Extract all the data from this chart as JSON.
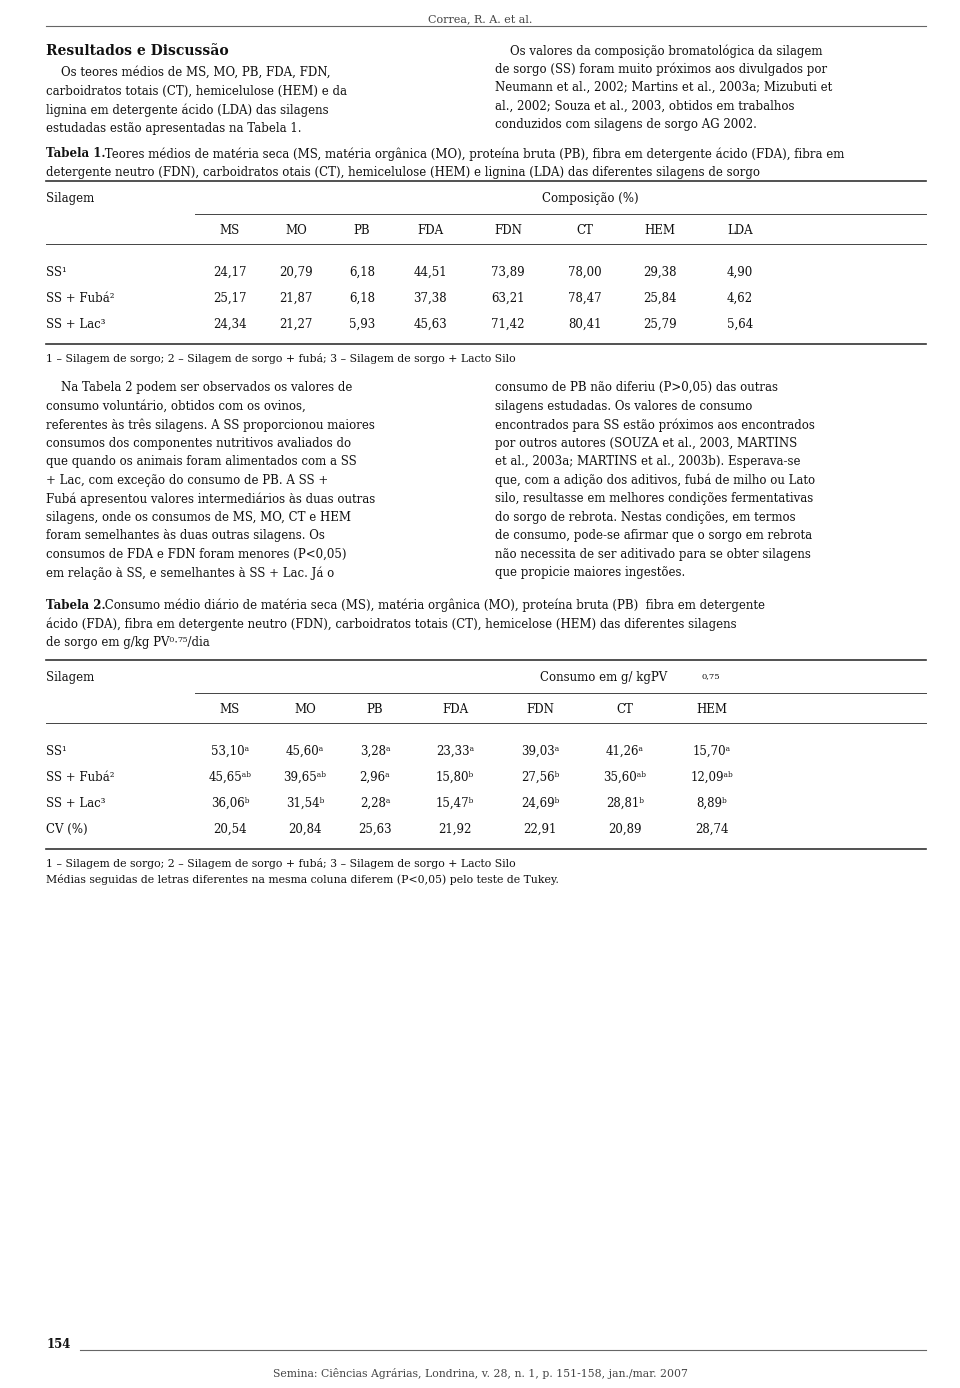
{
  "page_header": "Correa, R. A. et al.",
  "section_title": "Resultados e Discussão",
  "table1_footnote": "1 – Silagem de sorgo; 2 – Silagem de sorgo + fubá; 3 – Silagem de sorgo + Lacto Silo",
  "table2_footnote1": "1 – Silagem de sorgo; 2 – Silagem de sorgo + fubá; 3 – Silagem de sorgo + Lacto Silo",
  "table2_footnote2": "Médias seguidas de letras diferentes na mesma coluna diferem (P<0,05) pelo teste de Tukey.",
  "page_number": "154",
  "page_footer": "Semina: Ciências Agrárias, Londrina, v. 28, n. 1, p. 151-158, jan./mar. 2007",
  "bg_color": "#ffffff",
  "ML": 0.048,
  "MR": 0.965,
  "MID": 0.503,
  "COL_SEP": 0.487
}
